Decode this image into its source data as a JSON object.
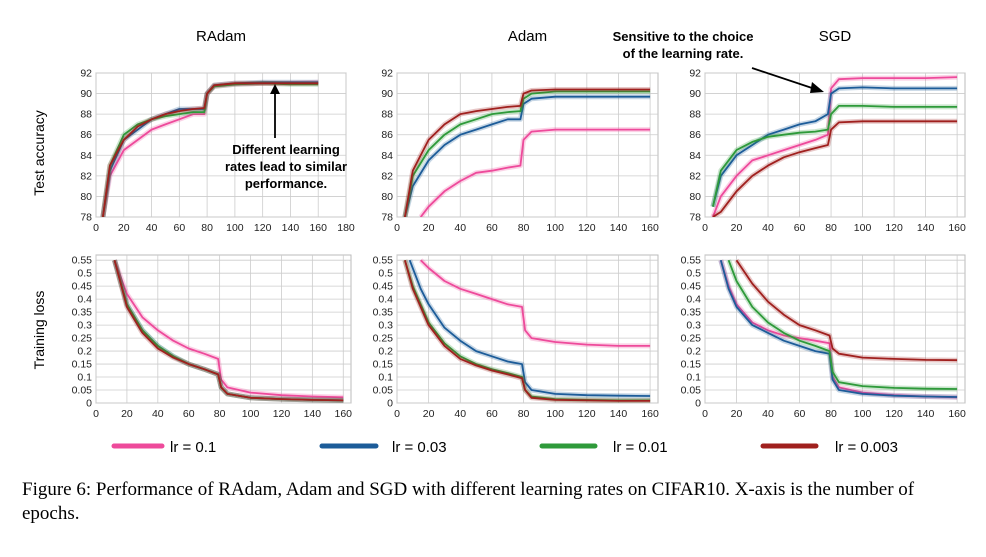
{
  "colors": {
    "lr_0_1": "#ee4a9b",
    "lr_0_03": "#1c5c99",
    "lr_0_01": "#2e9a3a",
    "lr_0_003": "#a0201e",
    "grid": "#cccccc",
    "axis": "#555555"
  },
  "row_labels": {
    "top": "Test accuracy",
    "bottom": "Training loss"
  },
  "legend": [
    {
      "label": "lr = 0.1",
      "color": "#ee4a9b"
    },
    {
      "label": "lr = 0.03",
      "color": "#1c5c99"
    },
    {
      "label": "lr = 0.01",
      "color": "#2e9a3a"
    },
    {
      "label": "lr = 0.003",
      "color": "#a0201e"
    }
  ],
  "annotations": {
    "radam": "Different learning\nrates lead to similar\nperformance.",
    "sgd": "Sensitive to the choice\nof the learning rate."
  },
  "caption": "Figure 6: Performance of RAdam, Adam and SGD with different learning rates on CIFAR10. X-axis is the number of epochs.",
  "chart_data": [
    {
      "type": "line",
      "title": "RAdam",
      "ylabel": "Test accuracy",
      "xlim": [
        0,
        180
      ],
      "ylim": [
        78,
        92
      ],
      "x_ticks": [
        0,
        20,
        40,
        60,
        80,
        100,
        120,
        140,
        160,
        180
      ],
      "y_ticks": [
        78,
        80,
        82,
        84,
        86,
        88,
        90,
        92
      ],
      "series": [
        {
          "name": "lr = 0.1",
          "x": [
            5,
            10,
            20,
            30,
            40,
            50,
            60,
            70,
            78,
            80,
            85,
            100,
            120,
            140,
            160
          ],
          "y": [
            78,
            82,
            84.5,
            85.5,
            86.5,
            87,
            87.5,
            88,
            88,
            90,
            90.7,
            90.9,
            91,
            91,
            91.1
          ]
        },
        {
          "name": "lr = 0.03",
          "x": [
            5,
            10,
            20,
            30,
            40,
            50,
            60,
            70,
            78,
            80,
            85,
            100,
            120,
            140,
            160
          ],
          "y": [
            78,
            82.5,
            85.5,
            86.5,
            87.5,
            88,
            88.5,
            88.5,
            88.5,
            90,
            90.8,
            91,
            91.1,
            91.1,
            91.1
          ]
        },
        {
          "name": "lr = 0.01",
          "x": [
            5,
            10,
            20,
            30,
            40,
            50,
            60,
            70,
            78,
            80,
            85,
            100,
            120,
            140,
            160
          ],
          "y": [
            78,
            83,
            86,
            87,
            87.5,
            87.8,
            88,
            88.2,
            88.2,
            90,
            90.7,
            90.9,
            91,
            90.9,
            90.9
          ]
        },
        {
          "name": "lr = 0.003",
          "x": [
            5,
            10,
            20,
            30,
            40,
            50,
            60,
            70,
            78,
            80,
            85,
            100,
            120,
            140,
            160
          ],
          "y": [
            78,
            83,
            85.5,
            86.8,
            87.5,
            88,
            88.3,
            88.5,
            88.6,
            90,
            90.8,
            91,
            91,
            91,
            91
          ]
        }
      ]
    },
    {
      "type": "line",
      "title": "Adam",
      "ylabel": "Test accuracy",
      "xlim": [
        0,
        165
      ],
      "ylim": [
        78,
        92
      ],
      "x_ticks": [
        0,
        20,
        40,
        60,
        80,
        100,
        120,
        140,
        160
      ],
      "y_ticks": [
        78,
        80,
        82,
        84,
        86,
        88,
        90,
        92
      ],
      "series": [
        {
          "name": "lr = 0.1",
          "x": [
            15,
            20,
            30,
            40,
            50,
            60,
            70,
            78,
            80,
            85,
            100,
            120,
            140,
            160
          ],
          "y": [
            78,
            79,
            80.5,
            81.5,
            82.3,
            82.5,
            82.8,
            83,
            85.5,
            86.3,
            86.5,
            86.5,
            86.5,
            86.5
          ]
        },
        {
          "name": "lr = 0.03",
          "x": [
            5,
            10,
            20,
            30,
            40,
            50,
            60,
            70,
            78,
            80,
            85,
            100,
            120,
            140,
            160
          ],
          "y": [
            78,
            81,
            83.5,
            85,
            86,
            86.5,
            87,
            87.5,
            87.5,
            89,
            89.5,
            89.7,
            89.7,
            89.7,
            89.7
          ]
        },
        {
          "name": "lr = 0.01",
          "x": [
            5,
            10,
            20,
            30,
            40,
            50,
            60,
            70,
            78,
            80,
            85,
            100,
            120,
            140,
            160
          ],
          "y": [
            78,
            82,
            84.5,
            86,
            87,
            87.5,
            88,
            88.2,
            88.3,
            89.5,
            90,
            90.2,
            90.2,
            90.2,
            90.2
          ]
        },
        {
          "name": "lr = 0.003",
          "x": [
            5,
            10,
            20,
            30,
            40,
            50,
            60,
            70,
            78,
            80,
            85,
            100,
            120,
            140,
            160
          ],
          "y": [
            78,
            82.5,
            85.5,
            87,
            88,
            88.3,
            88.5,
            88.7,
            88.8,
            90,
            90.3,
            90.4,
            90.4,
            90.4,
            90.4
          ]
        }
      ]
    },
    {
      "type": "line",
      "title": "SGD",
      "ylabel": "Test accuracy",
      "xlim": [
        0,
        165
      ],
      "ylim": [
        78,
        92
      ],
      "x_ticks": [
        0,
        20,
        40,
        60,
        80,
        100,
        120,
        140,
        160
      ],
      "y_ticks": [
        78,
        80,
        82,
        84,
        86,
        88,
        90,
        92
      ],
      "series": [
        {
          "name": "lr = 0.1",
          "x": [
            5,
            10,
            20,
            30,
            40,
            50,
            60,
            70,
            78,
            80,
            85,
            100,
            120,
            140,
            160
          ],
          "y": [
            78,
            80,
            82,
            83.5,
            84,
            84.5,
            85,
            85.5,
            86,
            90.5,
            91.4,
            91.5,
            91.5,
            91.5,
            91.6
          ]
        },
        {
          "name": "lr = 0.03",
          "x": [
            5,
            10,
            20,
            30,
            40,
            50,
            60,
            70,
            78,
            80,
            85,
            100,
            120,
            140,
            160
          ],
          "y": [
            79,
            82,
            84,
            85,
            86,
            86.5,
            87,
            87.3,
            88,
            90,
            90.5,
            90.6,
            90.5,
            90.5,
            90.5
          ]
        },
        {
          "name": "lr = 0.01",
          "x": [
            5,
            10,
            20,
            30,
            40,
            50,
            60,
            70,
            78,
            80,
            85,
            100,
            120,
            140,
            160
          ],
          "y": [
            79,
            82.5,
            84.5,
            85.3,
            85.8,
            86,
            86.2,
            86.3,
            86.5,
            88,
            88.8,
            88.8,
            88.7,
            88.7,
            88.7
          ]
        },
        {
          "name": "lr = 0.003",
          "x": [
            5,
            10,
            20,
            30,
            40,
            50,
            60,
            70,
            78,
            80,
            85,
            100,
            120,
            140,
            160
          ],
          "y": [
            78,
            78.5,
            80.5,
            82,
            83,
            83.8,
            84.3,
            84.7,
            85,
            86.5,
            87.2,
            87.3,
            87.3,
            87.3,
            87.3
          ]
        }
      ]
    },
    {
      "type": "line",
      "title": "",
      "ylabel": "Training loss",
      "xlim": [
        0,
        165
      ],
      "ylim": [
        0,
        0.57
      ],
      "x_ticks": [
        0,
        20,
        40,
        60,
        80,
        100,
        120,
        140,
        160
      ],
      "y_ticks": [
        0,
        0.05,
        0.1,
        0.15,
        0.2,
        0.25,
        0.3,
        0.35,
        0.4,
        0.45,
        0.5,
        0.55
      ],
      "series": [
        {
          "name": "lr = 0.1",
          "x": [
            12,
            20,
            30,
            40,
            50,
            60,
            70,
            79,
            81,
            85,
            100,
            120,
            140,
            160
          ],
          "y": [
            0.55,
            0.42,
            0.33,
            0.28,
            0.24,
            0.21,
            0.19,
            0.17,
            0.09,
            0.06,
            0.04,
            0.03,
            0.025,
            0.022
          ]
        },
        {
          "name": "lr = 0.03",
          "x": [
            12,
            20,
            30,
            40,
            50,
            60,
            70,
            79,
            81,
            85,
            100,
            120,
            140,
            160
          ],
          "y": [
            0.55,
            0.38,
            0.28,
            0.22,
            0.18,
            0.15,
            0.13,
            0.11,
            0.06,
            0.035,
            0.02,
            0.015,
            0.012,
            0.01
          ]
        },
        {
          "name": "lr = 0.01",
          "x": [
            12,
            20,
            30,
            40,
            50,
            60,
            70,
            79,
            81,
            85,
            100,
            120,
            140,
            160
          ],
          "y": [
            0.55,
            0.38,
            0.28,
            0.22,
            0.18,
            0.15,
            0.13,
            0.11,
            0.06,
            0.035,
            0.02,
            0.015,
            0.012,
            0.01
          ]
        },
        {
          "name": "lr = 0.003",
          "x": [
            12,
            20,
            30,
            40,
            50,
            60,
            70,
            79,
            81,
            85,
            100,
            120,
            140,
            160
          ],
          "y": [
            0.55,
            0.37,
            0.27,
            0.21,
            0.175,
            0.15,
            0.13,
            0.11,
            0.06,
            0.035,
            0.02,
            0.015,
            0.012,
            0.01
          ]
        }
      ]
    },
    {
      "type": "line",
      "title": "",
      "ylabel": "Training loss",
      "xlim": [
        0,
        165
      ],
      "ylim": [
        0,
        0.57
      ],
      "x_ticks": [
        0,
        20,
        40,
        60,
        80,
        100,
        120,
        140,
        160
      ],
      "y_ticks": [
        0,
        0.05,
        0.1,
        0.15,
        0.2,
        0.25,
        0.3,
        0.35,
        0.4,
        0.45,
        0.5,
        0.55
      ],
      "series": [
        {
          "name": "lr = 0.1",
          "x": [
            15,
            20,
            30,
            40,
            50,
            60,
            70,
            79,
            81,
            85,
            100,
            120,
            140,
            160
          ],
          "y": [
            0.55,
            0.52,
            0.47,
            0.44,
            0.42,
            0.4,
            0.38,
            0.37,
            0.28,
            0.25,
            0.235,
            0.225,
            0.22,
            0.22
          ]
        },
        {
          "name": "lr = 0.03",
          "x": [
            8,
            15,
            20,
            30,
            40,
            50,
            60,
            70,
            79,
            81,
            85,
            100,
            120,
            140,
            160
          ],
          "y": [
            0.55,
            0.44,
            0.38,
            0.29,
            0.24,
            0.2,
            0.18,
            0.16,
            0.15,
            0.08,
            0.05,
            0.035,
            0.03,
            0.028,
            0.027
          ]
        },
        {
          "name": "lr = 0.01",
          "x": [
            5,
            10,
            20,
            30,
            40,
            50,
            60,
            70,
            79,
            81,
            85,
            100,
            120,
            140,
            160
          ],
          "y": [
            0.55,
            0.45,
            0.31,
            0.23,
            0.18,
            0.15,
            0.13,
            0.115,
            0.1,
            0.05,
            0.025,
            0.015,
            0.012,
            0.01,
            0.01
          ]
        },
        {
          "name": "lr = 0.003",
          "x": [
            5,
            10,
            20,
            30,
            40,
            50,
            60,
            70,
            79,
            81,
            85,
            100,
            120,
            140,
            160
          ],
          "y": [
            0.55,
            0.44,
            0.3,
            0.22,
            0.17,
            0.145,
            0.125,
            0.11,
            0.095,
            0.05,
            0.02,
            0.012,
            0.01,
            0.008,
            0.008
          ]
        }
      ]
    },
    {
      "type": "line",
      "title": "",
      "ylabel": "Training loss",
      "xlim": [
        0,
        165
      ],
      "ylim": [
        0,
        0.57
      ],
      "x_ticks": [
        0,
        20,
        40,
        60,
        80,
        100,
        120,
        140,
        160
      ],
      "y_ticks": [
        0,
        0.05,
        0.1,
        0.15,
        0.2,
        0.25,
        0.3,
        0.35,
        0.4,
        0.45,
        0.5,
        0.55
      ],
      "series": [
        {
          "name": "lr = 0.1",
          "x": [
            10,
            15,
            20,
            30,
            40,
            50,
            60,
            70,
            79,
            81,
            85,
            100,
            120,
            140,
            160
          ],
          "y": [
            0.55,
            0.45,
            0.38,
            0.31,
            0.28,
            0.26,
            0.25,
            0.24,
            0.23,
            0.1,
            0.06,
            0.04,
            0.03,
            0.025,
            0.022
          ]
        },
        {
          "name": "lr = 0.03",
          "x": [
            10,
            15,
            20,
            30,
            40,
            50,
            60,
            70,
            79,
            81,
            85,
            100,
            120,
            140,
            160
          ],
          "y": [
            0.55,
            0.44,
            0.37,
            0.3,
            0.27,
            0.24,
            0.22,
            0.2,
            0.19,
            0.09,
            0.05,
            0.035,
            0.028,
            0.025,
            0.023
          ]
        },
        {
          "name": "lr = 0.01",
          "x": [
            15,
            20,
            30,
            40,
            50,
            60,
            70,
            79,
            81,
            85,
            100,
            120,
            140,
            160
          ],
          "y": [
            0.55,
            0.47,
            0.37,
            0.31,
            0.27,
            0.24,
            0.22,
            0.2,
            0.12,
            0.08,
            0.065,
            0.058,
            0.055,
            0.054
          ]
        },
        {
          "name": "lr = 0.003",
          "x": [
            20,
            30,
            40,
            50,
            60,
            70,
            79,
            81,
            85,
            100,
            120,
            140,
            160
          ],
          "y": [
            0.55,
            0.46,
            0.39,
            0.34,
            0.3,
            0.28,
            0.26,
            0.21,
            0.19,
            0.175,
            0.17,
            0.166,
            0.165
          ]
        }
      ]
    }
  ]
}
